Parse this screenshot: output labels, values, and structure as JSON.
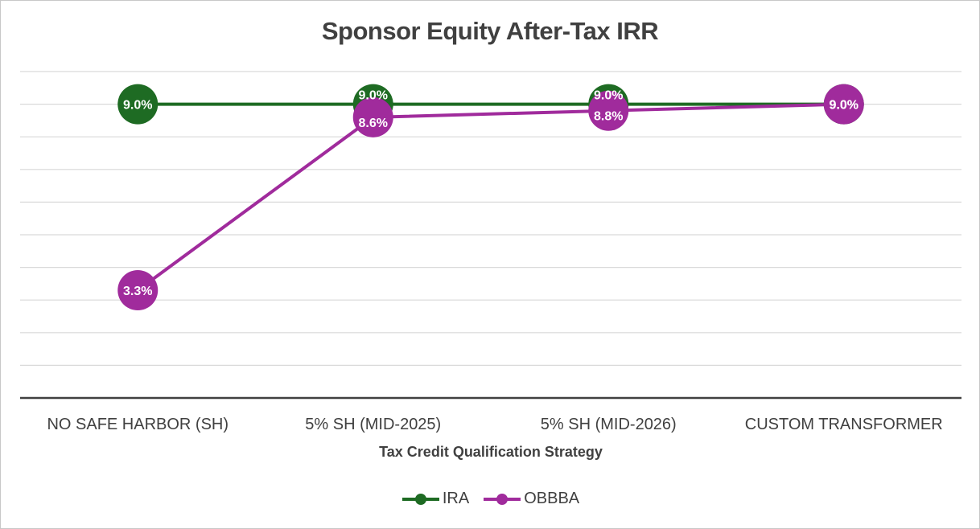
{
  "chart_data": {
    "type": "line",
    "title": "Sponsor Equity After-Tax IRR",
    "xlabel": "Tax Credit Qualification Strategy",
    "ylabel": "",
    "categories": [
      "NO SAFE HARBOR (SH)",
      "5% SH (MID-2025)",
      "5% SH (MID-2026)",
      "CUSTOM TRANSFORMER"
    ],
    "series": [
      {
        "name": "IRA",
        "color": "#1e6b23",
        "values": [
          9.0,
          9.0,
          9.0,
          9.0
        ],
        "labels": [
          "9.0%",
          "9.0%",
          "9.0%",
          "9.0%"
        ]
      },
      {
        "name": "OBBBA",
        "color": "#a02b9c",
        "values": [
          3.3,
          8.6,
          8.8,
          9.0
        ],
        "labels": [
          "3.3%",
          "8.6%",
          "8.8%",
          "9.0%"
        ]
      }
    ],
    "ylim": [
      0,
      10
    ],
    "grid": true,
    "y_tick_labels_shown": false,
    "legend_position": "bottom"
  }
}
